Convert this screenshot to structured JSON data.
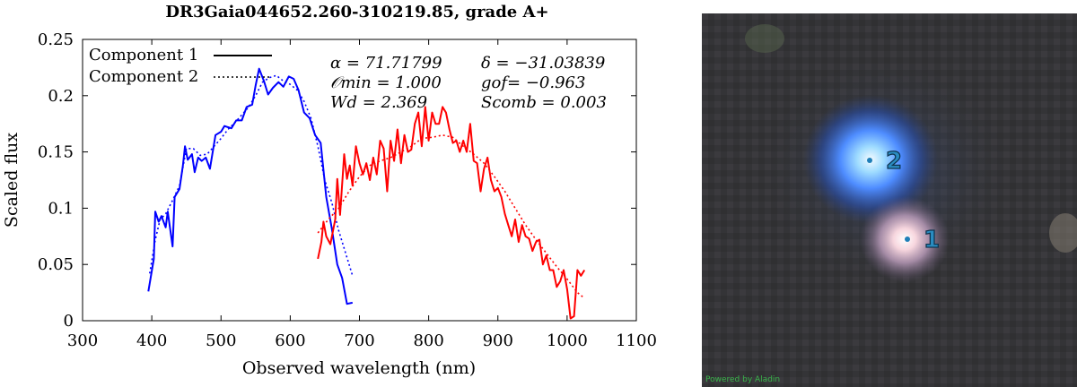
{
  "chart_data": {
    "type": "line",
    "title": "DR3Gaia044652.260-310219.85, grade A+",
    "xlabel": "Observed wavelength (nm)",
    "ylabel": "Scaled flux",
    "xlim": [
      300,
      1100
    ],
    "ylim": [
      0,
      0.25
    ],
    "xticks": [
      "300",
      "400",
      "500",
      "600",
      "700",
      "800",
      "900",
      "1000",
      "1100"
    ],
    "yticks": [
      "0",
      "0.05",
      "0.1",
      "0.15",
      "0.2",
      "0.25"
    ],
    "legend_position": "top-left",
    "legend": {
      "entries": [
        {
          "label": "Component 1",
          "style": "solid"
        },
        {
          "label": "Component 2",
          "style": "dotted"
        }
      ]
    },
    "annotations": {
      "ra": "α = 71.71799",
      "dec": "δ = −31.03839",
      "omin": "𝒪min = 1.000",
      "gof": "gof= −0.963",
      "wd": "Wd = 2.369",
      "scomb": "Scomb = 0.003"
    },
    "series": [
      {
        "color": "#0000ff",
        "style": "solid",
        "x": [
          395,
          403,
          405,
          410,
          414,
          420,
          423,
          430,
          433,
          440,
          445,
          448,
          452,
          458,
          462,
          467,
          472,
          478,
          484,
          492,
          500,
          505,
          515,
          522,
          530,
          537,
          545,
          550,
          555,
          562,
          568,
          575,
          583,
          590,
          598,
          605,
          612,
          620,
          628,
          636,
          644,
          652,
          660,
          668,
          675,
          682,
          690
        ],
        "y": [
          0.026,
          0.055,
          0.097,
          0.088,
          0.093,
          0.083,
          0.097,
          0.066,
          0.11,
          0.117,
          0.138,
          0.155,
          0.143,
          0.148,
          0.132,
          0.145,
          0.142,
          0.145,
          0.135,
          0.165,
          0.168,
          0.173,
          0.171,
          0.178,
          0.178,
          0.19,
          0.192,
          0.209,
          0.224,
          0.213,
          0.201,
          0.207,
          0.212,
          0.208,
          0.217,
          0.215,
          0.205,
          0.185,
          0.18,
          0.165,
          0.158,
          0.11,
          0.082,
          0.05,
          0.038,
          0.015,
          0.016
        ]
      },
      {
        "color": "#0000ff",
        "style": "dotted",
        "x": [
          397,
          405,
          412,
          420,
          430,
          440,
          450,
          460,
          470,
          480,
          490,
          500,
          510,
          520,
          530,
          540,
          550,
          560,
          570,
          580,
          590,
          600,
          610,
          620,
          630,
          640,
          650,
          660,
          670,
          680,
          690
        ],
        "y": [
          0.042,
          0.072,
          0.09,
          0.095,
          0.107,
          0.12,
          0.153,
          0.153,
          0.147,
          0.148,
          0.155,
          0.162,
          0.17,
          0.176,
          0.183,
          0.19,
          0.2,
          0.212,
          0.216,
          0.218,
          0.213,
          0.21,
          0.205,
          0.195,
          0.18,
          0.155,
          0.125,
          0.105,
          0.08,
          0.06,
          0.04
        ]
      },
      {
        "color": "#ff0000",
        "style": "solid",
        "x": [
          640,
          645,
          648,
          652,
          658,
          665,
          668,
          672,
          678,
          682,
          686,
          690,
          695,
          700,
          705,
          710,
          715,
          720,
          725,
          730,
          735,
          740,
          745,
          750,
          755,
          760,
          765,
          770,
          775,
          780,
          785,
          790,
          795,
          800,
          805,
          810,
          815,
          820,
          825,
          830,
          835,
          840,
          845,
          850,
          855,
          860,
          865,
          870,
          875,
          880,
          885,
          890,
          895,
          900,
          905,
          910,
          915,
          920,
          925,
          930,
          935,
          940,
          945,
          950,
          955,
          960,
          965,
          970,
          975,
          980,
          985,
          990,
          995,
          1000,
          1005,
          1010,
          1015,
          1020,
          1025
        ],
        "y": [
          0.055,
          0.07,
          0.088,
          0.075,
          0.068,
          0.09,
          0.126,
          0.094,
          0.148,
          0.126,
          0.138,
          0.12,
          0.155,
          0.14,
          0.13,
          0.14,
          0.125,
          0.145,
          0.13,
          0.16,
          0.153,
          0.115,
          0.16,
          0.142,
          0.17,
          0.14,
          0.165,
          0.15,
          0.152,
          0.175,
          0.185,
          0.155,
          0.19,
          0.16,
          0.185,
          0.175,
          0.175,
          0.19,
          0.185,
          0.17,
          0.158,
          0.16,
          0.15,
          0.16,
          0.15,
          0.175,
          0.142,
          0.14,
          0.115,
          0.135,
          0.145,
          0.125,
          0.115,
          0.118,
          0.11,
          0.095,
          0.085,
          0.075,
          0.09,
          0.07,
          0.085,
          0.075,
          0.073,
          0.062,
          0.07,
          0.072,
          0.05,
          0.058,
          0.045,
          0.045,
          0.03,
          0.035,
          0.045,
          0.028,
          0.002,
          0.004,
          0.045,
          0.04,
          0.045
        ]
      },
      {
        "color": "#ff0000",
        "style": "dotted",
        "x": [
          640,
          655,
          670,
          685,
          700,
          715,
          730,
          745,
          760,
          775,
          790,
          805,
          820,
          835,
          850,
          865,
          880,
          895,
          910,
          925,
          940,
          955,
          970,
          985,
          1000,
          1015,
          1025
        ],
        "y": [
          0.078,
          0.09,
          0.1,
          0.115,
          0.128,
          0.138,
          0.142,
          0.145,
          0.15,
          0.155,
          0.162,
          0.163,
          0.165,
          0.163,
          0.155,
          0.148,
          0.14,
          0.128,
          0.115,
          0.1,
          0.085,
          0.072,
          0.06,
          0.048,
          0.037,
          0.025,
          0.02
        ]
      }
    ]
  },
  "image_panel": {
    "marker_labels": [
      "2",
      "1"
    ],
    "credit": "Powered by Aladin"
  }
}
